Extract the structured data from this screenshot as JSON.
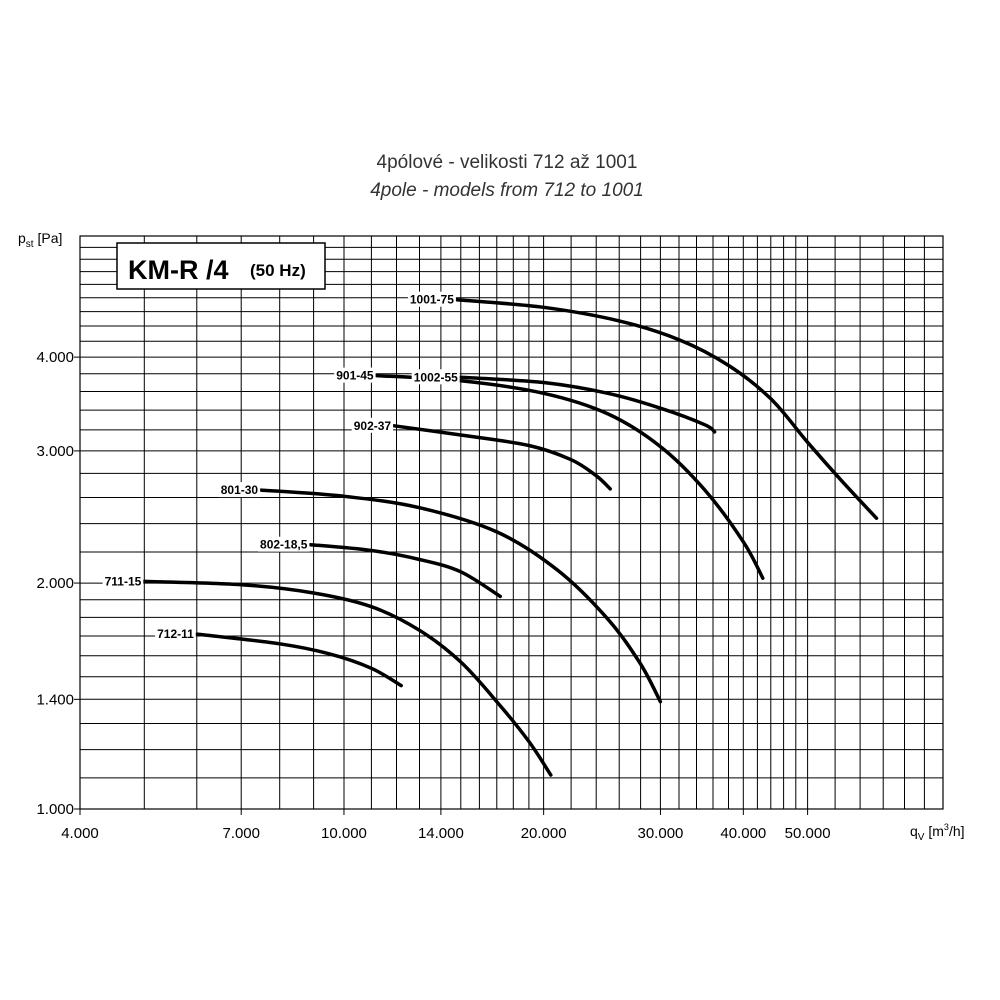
{
  "title": {
    "line1": "4pólové - velikosti 712 až 1001",
    "line2": "4pole - models from 712 to 1001"
  },
  "model_box": {
    "main": "KM-R /4",
    "sub": "(50 Hz)"
  },
  "chart_data": {
    "type": "line",
    "x_scale": "log",
    "y_scale": "log",
    "xlim": [
      4000,
      80000
    ],
    "ylim": [
      1000,
      5800
    ],
    "grid": true,
    "xlabel": {
      "base": "q",
      "sub": "V",
      "unit_open": " [m",
      "unit_sup": "3",
      "unit_close": "/h]"
    },
    "ylabel": {
      "base": "p",
      "sub": "st",
      "unit": " [Pa]"
    },
    "x_ticks": [
      {
        "value": 4000,
        "label": "4.000"
      },
      {
        "value": 7000,
        "label": "7.000"
      },
      {
        "value": 10000,
        "label": "10.000"
      },
      {
        "value": 14000,
        "label": "14.000"
      },
      {
        "value": 20000,
        "label": "20.000"
      },
      {
        "value": 30000,
        "label": "30.000"
      },
      {
        "value": 40000,
        "label": "40.000"
      },
      {
        "value": 50000,
        "label": "50.000"
      }
    ],
    "y_ticks": [
      {
        "value": 1000,
        "label": "1.000"
      },
      {
        "value": 1400,
        "label": "1.400"
      },
      {
        "value": 2000,
        "label": "2.000"
      },
      {
        "value": 3000,
        "label": "3.000"
      },
      {
        "value": 4000,
        "label": "4.000"
      }
    ],
    "x_grid": [
      4000,
      5000,
      6000,
      7000,
      8000,
      9000,
      10000,
      11000,
      12000,
      13000,
      14000,
      15000,
      16000,
      17000,
      18000,
      19000,
      20000,
      22000,
      24000,
      26000,
      28000,
      30000,
      32000,
      34000,
      36000,
      38000,
      40000,
      42000,
      44000,
      46000,
      48000,
      50000,
      55000,
      60000,
      65000,
      70000,
      75000,
      80000
    ],
    "y_grid": [
      1000,
      1100,
      1200,
      1300,
      1400,
      1500,
      1600,
      1700,
      1800,
      1900,
      2000,
      2200,
      2400,
      2600,
      2800,
      3000,
      3200,
      3400,
      3600,
      3800,
      4000,
      4200,
      4400,
      4600,
      4800,
      5000,
      5200,
      5400,
      5600
    ],
    "series": [
      {
        "name": "1001-75",
        "points": [
          [
            14800,
            4770
          ],
          [
            20000,
            4660
          ],
          [
            26000,
            4470
          ],
          [
            32000,
            4220
          ],
          [
            38000,
            3900
          ],
          [
            44000,
            3520
          ],
          [
            50000,
            3080
          ],
          [
            56000,
            2750
          ],
          [
            63500,
            2440
          ]
        ]
      },
      {
        "name": "1002-55",
        "points": [
          [
            15000,
            3760
          ],
          [
            20000,
            3700
          ],
          [
            25000,
            3580
          ],
          [
            30000,
            3420
          ],
          [
            35000,
            3250
          ],
          [
            36200,
            3180
          ]
        ]
      },
      {
        "name": "901-45",
        "points": [
          [
            11200,
            3780
          ],
          [
            15000,
            3720
          ],
          [
            20000,
            3580
          ],
          [
            25000,
            3360
          ],
          [
            30000,
            3040
          ],
          [
            35000,
            2660
          ],
          [
            40000,
            2270
          ],
          [
            42800,
            2030
          ]
        ]
      },
      {
        "name": "902-37",
        "points": [
          [
            11900,
            3240
          ],
          [
            15000,
            3150
          ],
          [
            19000,
            3050
          ],
          [
            22000,
            2920
          ],
          [
            24000,
            2780
          ],
          [
            25200,
            2670
          ]
        ]
      },
      {
        "name": "801-30",
        "points": [
          [
            7500,
            2660
          ],
          [
            10000,
            2610
          ],
          [
            13000,
            2520
          ],
          [
            17000,
            2340
          ],
          [
            21000,
            2080
          ],
          [
            25000,
            1790
          ],
          [
            28000,
            1560
          ],
          [
            30000,
            1390
          ]
        ]
      },
      {
        "name": "802-18,5",
        "points": [
          [
            8900,
            2250
          ],
          [
            11000,
            2210
          ],
          [
            13000,
            2150
          ],
          [
            15000,
            2070
          ],
          [
            17200,
            1920
          ]
        ]
      },
      {
        "name": "711-15",
        "points": [
          [
            5000,
            2010
          ],
          [
            7000,
            1990
          ],
          [
            9000,
            1940
          ],
          [
            11000,
            1860
          ],
          [
            13000,
            1730
          ],
          [
            15000,
            1570
          ],
          [
            17000,
            1390
          ],
          [
            19000,
            1230
          ],
          [
            20500,
            1110
          ]
        ]
      },
      {
        "name": "712-11",
        "points": [
          [
            6000,
            1710
          ],
          [
            8000,
            1660
          ],
          [
            9500,
            1610
          ],
          [
            11000,
            1540
          ],
          [
            12200,
            1460
          ]
        ]
      }
    ]
  }
}
